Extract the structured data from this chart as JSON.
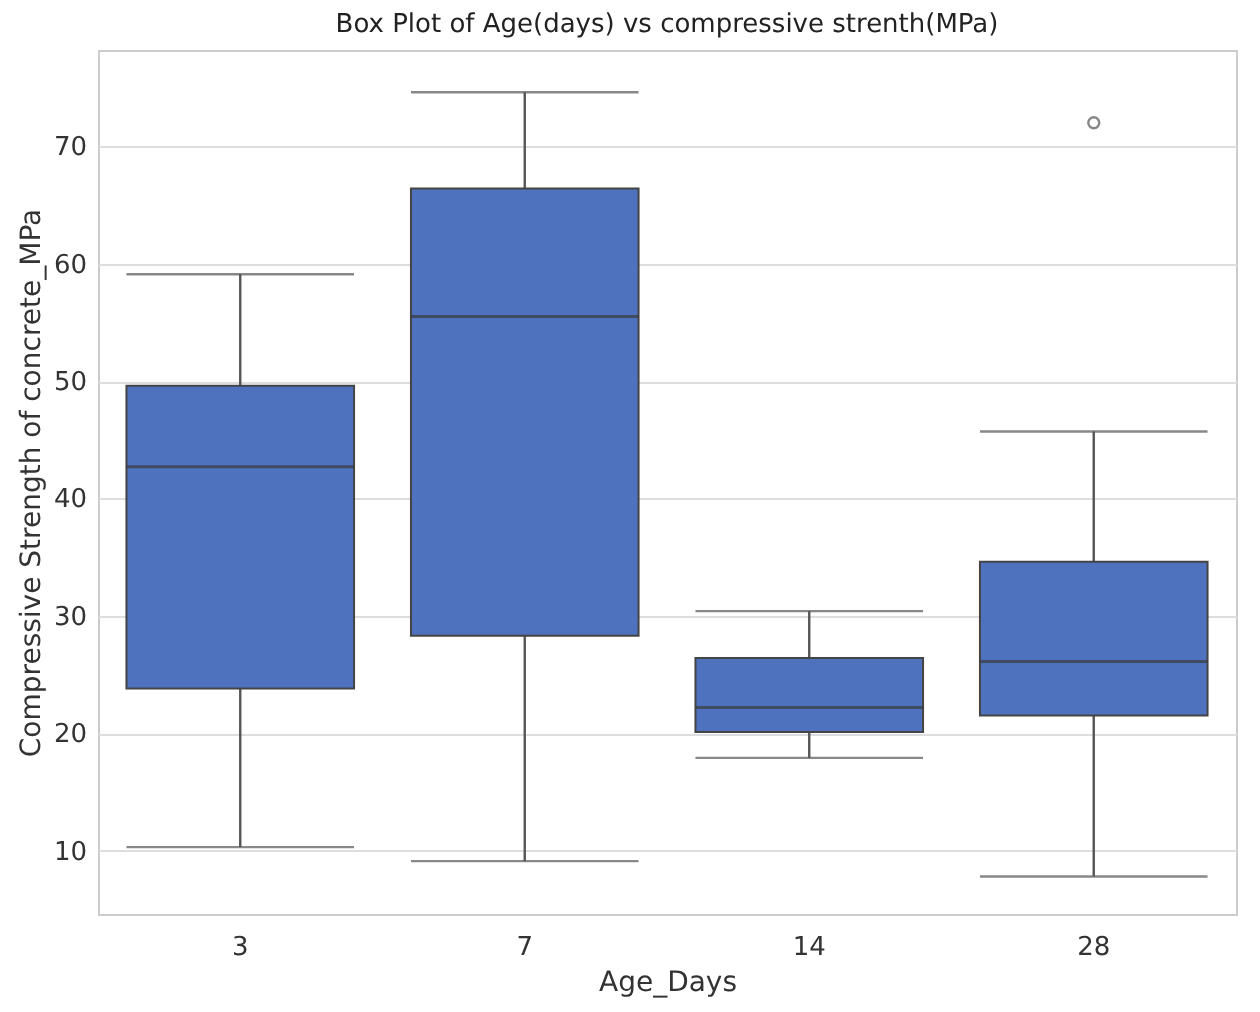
{
  "chart_data": {
    "type": "box",
    "title": "Box Plot of Age(days) vs compressive strenth(MPa)",
    "xlabel": "Age_Days",
    "ylabel": "Compressive Strength of concrete_MPa",
    "categories": [
      "3",
      "7",
      "14",
      "28"
    ],
    "boxes": [
      {
        "low": 10.3,
        "q1": 23.8,
        "median": 42.7,
        "q3": 49.6,
        "high": 59.1
      },
      {
        "low": 9.1,
        "q1": 28.3,
        "median": 55.5,
        "q3": 66.4,
        "high": 74.6
      },
      {
        "low": 17.9,
        "q1": 20.1,
        "median": 22.2,
        "q3": 26.4,
        "high": 30.4
      },
      {
        "low": 7.8,
        "q1": 21.5,
        "median": 26.1,
        "q3": 34.6,
        "high": 45.7,
        "outliers": [
          72
        ]
      }
    ],
    "color": "#4e72be",
    "ylim": [
      4.6,
      78.2
    ],
    "yticks": [
      10,
      20,
      30,
      40,
      50,
      60,
      70
    ],
    "grid": "y"
  }
}
